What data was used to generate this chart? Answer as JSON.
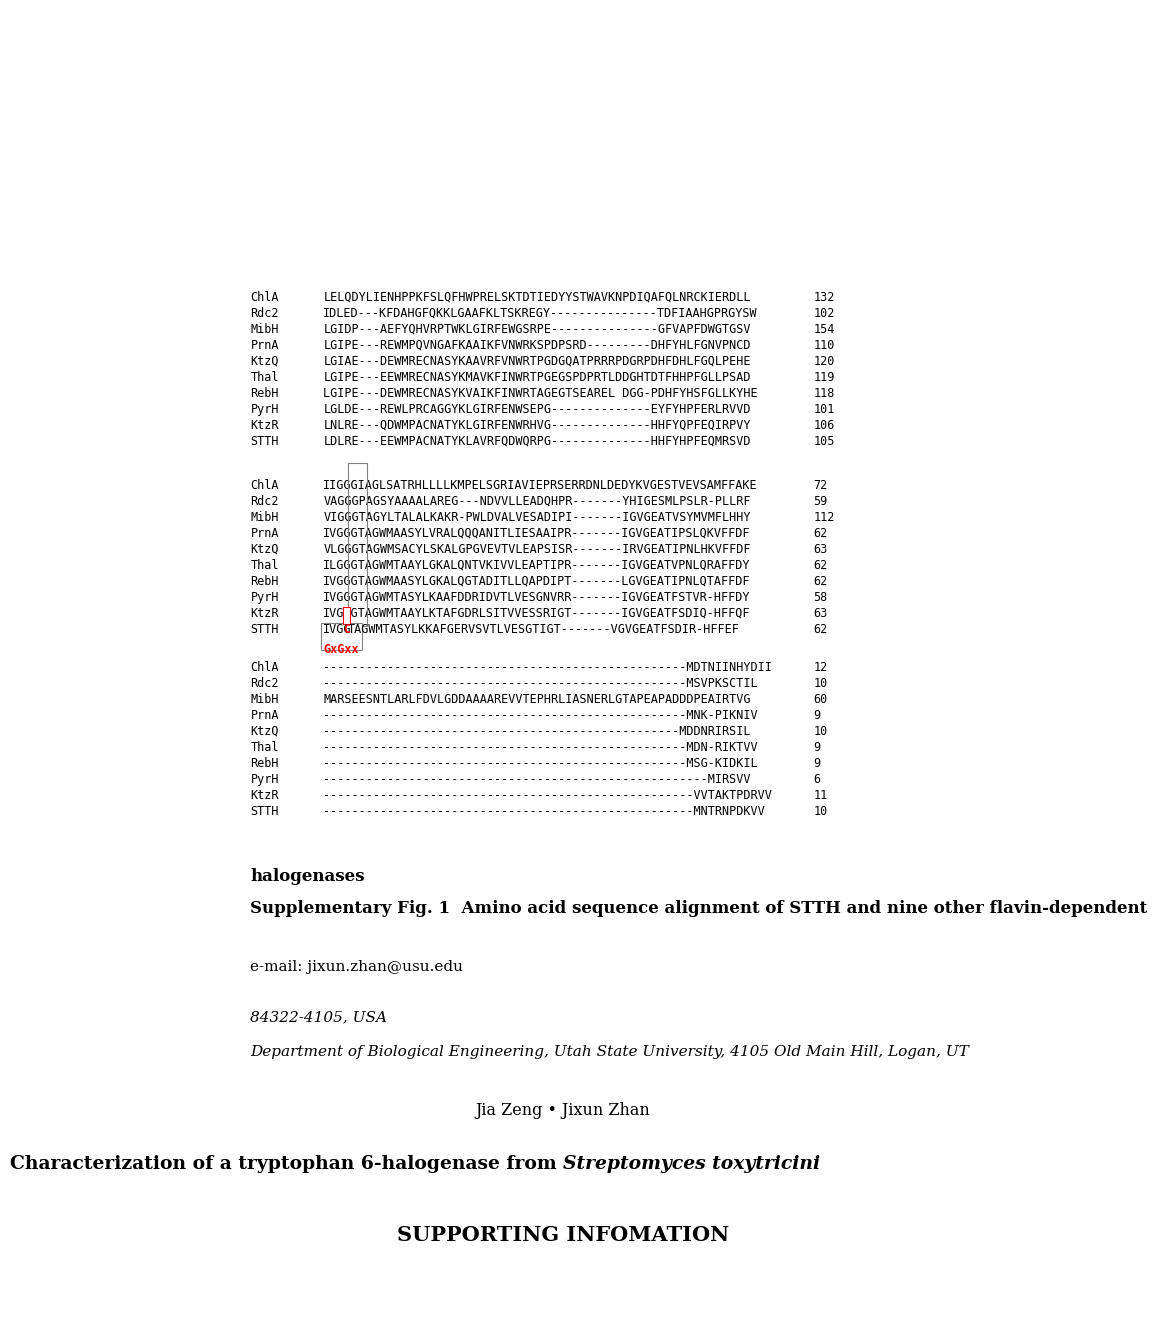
{
  "title": "SUPPORTING INFOMATION",
  "subtitle_bold": "Characterization of a tryptophan 6-halogenase from ",
  "subtitle_italic": "Streptomyces toxytricini",
  "authors": "Jia Zeng • Jixun Zhan",
  "affiliation1": "Department of Biological Engineering, Utah State University, 4105 Old Main Hill, Logan, UT",
  "affiliation2": "84322-4105, USA",
  "email": "e-mail: jixun.zhan@usu.edu",
  "fig_caption_bold": "Supplementary Fig. 1  Amino acid sequence alignment of STTH and nine other flavin-dependent",
  "fig_caption_bold2": "halogenases",
  "seq_block1": [
    [
      "STTH",
      "----------------------------------------------------MNTRNPDKVV",
      "10"
    ],
    [
      "KtzR",
      "----------------------------------------------------VVTAKTPDRVV",
      "11"
    ],
    [
      "PyrH",
      "------------------------------------------------------MIRSVV",
      "6"
    ],
    [
      "RebH",
      "---------------------------------------------------MSG-KIDKIL",
      "9"
    ],
    [
      "Thal",
      "---------------------------------------------------MDN-RIKTVV",
      "9"
    ],
    [
      "KtzQ",
      "--------------------------------------------------MDDNRIRSIL",
      "10"
    ],
    [
      "PrnA",
      "---------------------------------------------------MNK-PIKNIV",
      "9"
    ],
    [
      "MibH",
      "MARSEESNTLARLFDVLGDDAAAAREVVTEPHRLIASNERLGTAPEAPADDDPEAIRTVG",
      "60"
    ],
    [
      "Rdc2",
      "---------------------------------------------------MSVPKSCTIL",
      "10"
    ],
    [
      "ChlA",
      "---------------------------------------------------MDTNIINHYDII",
      "12"
    ]
  ],
  "gxgxx_label": "GxGxx",
  "seq_block2": [
    [
      "STTH",
      "IVGGCTAGWMTASYLKKAFGERVSVTLVESGTIGT-------VGVGEATFSDIR-HFFEF",
      "62"
    ],
    [
      "KtzR",
      "IVGGGTAGWMTAAYLKTAFGDRLSITVVESSRIGT-------IGVGEATFSDIQ-HFFQF",
      "63"
    ],
    [
      "PyrH",
      "IVGGGTAGWMTASYLKAAFDDRIDVTLVESGNVRR-------IGVGEATFSTVR-HFFDY",
      "58"
    ],
    [
      "RebH",
      "IVGGGTAGWMAASYLGKALQGTADITLLQAPDIPT-------LGVGEATIPNLQTAFFDF",
      "62"
    ],
    [
      "Thal",
      "ILGGGTAGWMTAAYLGKALQNTVKIVVLEAPTIPR-------IGVGEATVPNLQRAFFDY",
      "62"
    ],
    [
      "KtzQ",
      "VLGGGTAGWMSACYLSKALGPGVEVTVLEAPSISR-------IRVGEATIPNLHKVFFDF",
      "63"
    ],
    [
      "PrnA",
      "IVGGGTAGWMAASYLVRALQQQANITLIESAAIPR-------IGVGEATIPSLQKVFFDF",
      "62"
    ],
    [
      "MibH",
      "VIGGGTAGYLTALALKAKR-PWLDVALVESADIPI-------IGVGEATVSYMVMFLHHY",
      "112"
    ],
    [
      "Rdc2",
      "VAGGGPAGSYAAAALAREG---NDVVLLEADQHPR-------YHIGESMLPSLR-PLLRF",
      "59"
    ],
    [
      "ChlA",
      "IIGGGIAGLSATRHLLLLKMPELSGRIAVIEPRSERRDNLDEDYKVGESTVEVSAMFFAKE",
      "72"
    ]
  ],
  "seq_block3": [
    [
      "STTH",
      "LDLRE---EEWMPACNATYKLAVRFQDWQRPG--------------HHFYHPFEQMRSVD",
      "105"
    ],
    [
      "KtzR",
      "LNLRE---QDWMPACNATYKLGIRFENWRHVG--------------HHFYQPFEQIRPVY",
      "106"
    ],
    [
      "PyrH",
      "LGLDE---REWLPRCAGGYKLGIRFENWSEPG--------------EYFYHPFERLRVVD",
      "101"
    ],
    [
      "RebH",
      "LGIPE---DEWMRECNASYKVAIKFINWRTAGEGTSEAREL DGG-PDHFYHSFGLLKYHE",
      "118"
    ],
    [
      "Thal",
      "LGIPE---EEWMRECNASYKMAVKFINWRTPGEGSPDPRTLDDGHTDTFHHPFGLLPSAD",
      "119"
    ],
    [
      "KtzQ",
      "LGIAE---DEWMRECNASYKAAVRFVNWRTPGDGQATPRRRPDGRPDHFDHLFGQLPEHE",
      "120"
    ],
    [
      "PrnA",
      "LGIPE---REWMPQVNGAFKAAIKFVNWRKSPDPSRD---------DHFYHLFGNVPNCD",
      "110"
    ],
    [
      "MibH",
      "LGIDP---AEFYQHVRPTWKLGIRFEWGSRPE---------------GFVAPFDWGTGSV",
      "154"
    ],
    [
      "Rdc2",
      "IDLED---KFDAHGFQKKLGAAFKLTSKREGY---------------TDFIAAHGPRGYSW",
      "102"
    ],
    [
      "ChlA",
      "LELQDYLIENHPPKFSLQFHWPRELSKTDTIEDYYSTWAVKNPDIQAFQLNRCKIERDLL",
      "132"
    ]
  ],
  "bg_color": "#ffffff",
  "text_color": "#000000",
  "seq_color": "#000000",
  "highlight_color": "#ff0000",
  "highlight_bg": "#ffffff"
}
